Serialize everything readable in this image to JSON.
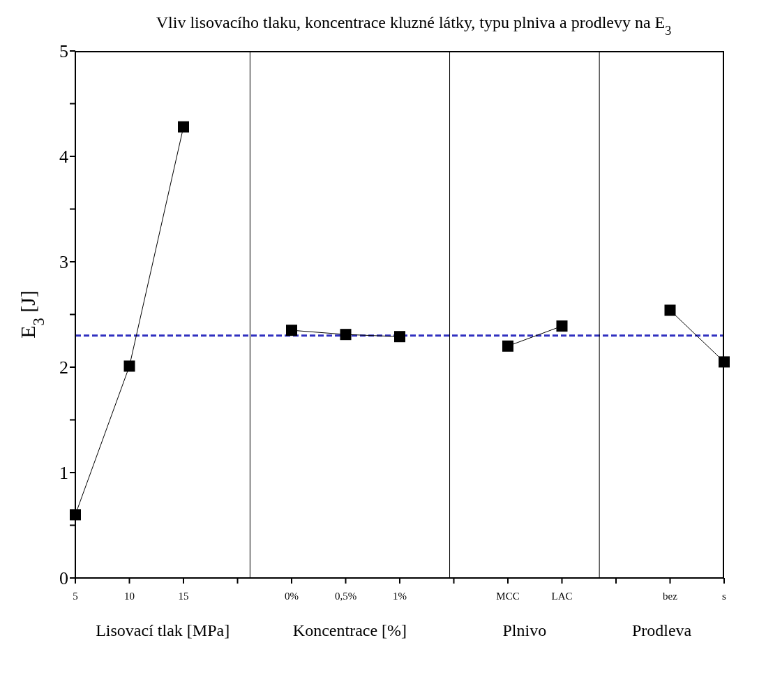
{
  "chart_data": {
    "type": "line",
    "title": "Vliv lisovacího tlaku, koncentrace kluzné látky, typu plniva a prodlevy na E$_{3}$",
    "ylabel": "E$_{3}$ [J]",
    "annotations": [
      "Lisovací tlak [MPa]",
      "Koncentrace [%]",
      "Plnivo",
      "Prodleva"
    ],
    "categories": [
      "5",
      "10",
      "15",
      null,
      "0%",
      "0,5%",
      "1%",
      null,
      "MCC",
      "LAC",
      null,
      "bez",
      "s"
    ],
    "series": [
      {
        "color": "#000000",
        "values": [
          0.6,
          2.01,
          4.28,
          null,
          null,
          null,
          null,
          null,
          null,
          null,
          null,
          null,
          null
        ]
      },
      {
        "color": "#000000",
        "values": [
          null,
          null,
          null,
          null,
          2.35,
          2.31,
          2.29,
          null,
          null,
          null,
          null,
          null,
          null
        ]
      },
      {
        "color": "#000000",
        "values": [
          null,
          null,
          null,
          null,
          null,
          null,
          null,
          null,
          2.2,
          2.39,
          null,
          null,
          null
        ]
      },
      {
        "color": "#000000",
        "values": [
          null,
          null,
          null,
          null,
          null,
          null,
          null,
          null,
          null,
          null,
          null,
          2.54,
          2.05
        ]
      }
    ],
    "marker": "square",
    "line_style": "solid",
    "grid": false,
    "legend": false,
    "ylim": [
      0,
      5
    ],
    "yticks": [
      0,
      {
        "value": 0.5,
        "label": null
      },
      1,
      {
        "value": 1.5,
        "label": null
      },
      2,
      {
        "value": 2.5,
        "label": null
      },
      3,
      {
        "value": 3.5,
        "label": null
      },
      4,
      {
        "value": 4.5,
        "label": null
      },
      5
    ],
    "ref_lines": [
      {
        "axis": "y",
        "value": 2.3,
        "color": "#3030c0",
        "line_style": "dashed"
      }
    ]
  }
}
